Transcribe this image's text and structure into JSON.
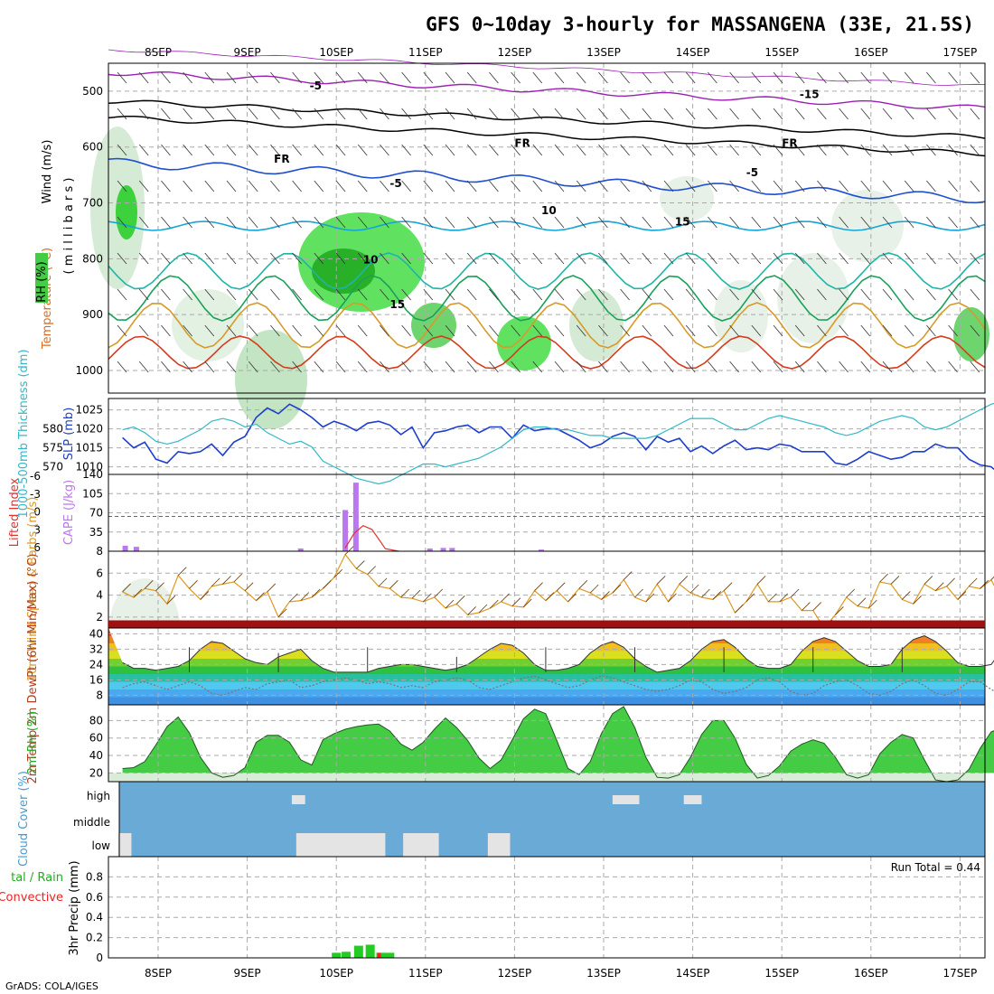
{
  "title": "GFS 0~10day 3-hourly for MASSANGENA (33E, 21.5S)",
  "footer": "GrADS: COLA/IGES",
  "colors": {
    "purple": "#9b1fb4",
    "black": "#000000",
    "blue": "#1f4fd0",
    "lightblue": "#16a3d6",
    "teal": "#1fb5a6",
    "green_line": "#1aa05a",
    "orange": "#d79a2a",
    "red": "#d43c1c",
    "rh_green": "#22dd22",
    "cloud_blue": "#6aaad6",
    "cloud_white": "#e4e4e4",
    "precip_green": "#22cc22",
    "precip_red": "#ee2222",
    "cape": "#bb77ee",
    "li": "#dd3333",
    "wind10": "#dd9922",
    "slp": "#1e3ecc",
    "thick": "#30b8c8"
  },
  "chart_data": [
    {
      "id": "upper_air",
      "type": "contour",
      "xaxis_dates": [
        "8SEP",
        "9SEP",
        "10SEP",
        "11SEP",
        "12SEP",
        "13SEP",
        "14SEP",
        "15SEP",
        "16SEP",
        "17SEP"
      ],
      "ylabels": [
        "Wind (m/s)",
        "Temperature (°C)",
        "RH (%)",
        "( m i l l i b a r s )"
      ],
      "yticks": [
        "500",
        "600",
        "700",
        "800",
        "900",
        "1000"
      ],
      "ylim": [
        450,
        1000
      ],
      "contour_labels": [
        {
          "text": "-5",
          "color": "purple",
          "x": 1.7,
          "p": 497
        },
        {
          "text": "-15",
          "color": "purple",
          "x": 7.2,
          "p": 512
        },
        {
          "text": "FR",
          "color": "black",
          "x": 1.3,
          "p": 628
        },
        {
          "text": "FR",
          "color": "black",
          "x": 4.0,
          "p": 600
        },
        {
          "text": "FR",
          "color": "black",
          "x": 7.0,
          "p": 600
        },
        {
          "text": "-5",
          "color": "blue",
          "x": 2.6,
          "p": 672
        },
        {
          "text": "-5",
          "color": "blue",
          "x": 6.6,
          "p": 652
        },
        {
          "text": "10",
          "color": "lightblue",
          "x": 4.3,
          "p": 720
        },
        {
          "text": "15",
          "color": "teal",
          "x": 5.8,
          "p": 740
        },
        {
          "text": "10",
          "color": "lightblue",
          "x": 2.3,
          "p": 808
        },
        {
          "text": "15",
          "color": "teal",
          "x": 2.6,
          "p": 888
        }
      ]
    },
    {
      "id": "slp_thickness",
      "type": "line",
      "ylabel_left": "1000-500mb Thickness (dm)",
      "ylabel_right": "SLP (mb)",
      "yticks_left": [
        "570",
        "575",
        "580"
      ],
      "yticks_right": [
        "1010",
        "1015",
        "1020",
        "1025"
      ],
      "ylim_slp": [
        1008,
        1028
      ],
      "slp": [
        1017.7,
        1015.0,
        1016.5,
        1012.0,
        1011.0,
        1014.0,
        1013.5,
        1014.0,
        1016.0,
        1013.0,
        1016.5,
        1018.0,
        1023.0,
        1025.5,
        1024.0,
        1026.5,
        1025.0,
        1023.0,
        1020.5,
        1022.0,
        1021.0,
        1019.5,
        1021.5,
        1022.0,
        1021.0,
        1018.5,
        1020.5,
        1015.0,
        1019.0,
        1019.5,
        1020.5,
        1021.0,
        1019.0,
        1020.5,
        1020.5,
        1017.5,
        1021.0,
        1019.5,
        1020.0,
        1020.0,
        1018.5,
        1017.0,
        1015.0,
        1016.0,
        1018.0,
        1019.0,
        1018.0,
        1014.5,
        1018.0,
        1016.5,
        1017.5,
        1014.0,
        1015.5,
        1013.5,
        1015.5,
        1017.0,
        1014.5,
        1015.0,
        1014.5,
        1016.0,
        1015.5,
        1014.0,
        1014.0,
        1014.0,
        1011.0,
        1010.5,
        1012.0,
        1014.0,
        1013.0,
        1012.0,
        1012.5,
        1014.0,
        1014.0,
        1016.0,
        1015.0,
        1015.0,
        1012.0,
        1010.5,
        1010.0,
        1007.5,
        1008.0,
        1011.0,
        1013.0,
        1015.0,
        1016.0,
        1017.5,
        1019.5
      ],
      "thickness": [
        576.5,
        577.0,
        576.0,
        574.5,
        574.0,
        574.5,
        575.5,
        576.5,
        578.0,
        578.5,
        578.0,
        577.0,
        577.5,
        576.0,
        575.0,
        574.0,
        574.5,
        573.5,
        571.0,
        570.0,
        569.0,
        568.0,
        567.5,
        567.0,
        567.5,
        568.5,
        569.5,
        570.5,
        570.5,
        570.0,
        570.5,
        571.0,
        571.5,
        572.5,
        573.5,
        575.0,
        576.5,
        577.0,
        577.0,
        576.5,
        576.5,
        576.0,
        575.5,
        575.5,
        575.0,
        575.0,
        575.0,
        575.0,
        575.5,
        576.5,
        577.5,
        578.5,
        578.5,
        578.5,
        577.5,
        576.5,
        576.5,
        577.5,
        578.5,
        579.0,
        578.5,
        578.0,
        577.5,
        577.0,
        576.0,
        575.5,
        576.0,
        577.0,
        578.0,
        578.5,
        579.0,
        578.5,
        577.0,
        576.5,
        577.0,
        578.0,
        579.0,
        580.0,
        581.0,
        581.5,
        580.5,
        578.0,
        577.0,
        576.5,
        576.5,
        576.5,
        577.0
      ]
    },
    {
      "id": "cape_li",
      "type": "bar+line",
      "ylabel_left": "Lifted Index",
      "ylabel_right": "CAPE (J/kg)",
      "yticks_left": [
        "-6",
        "-3",
        "0",
        "3",
        "6"
      ],
      "yticks_right": [
        "35",
        "70",
        "105",
        "140"
      ],
      "ylim_cape": [
        0,
        140
      ],
      "cape": [
        10,
        8,
        0,
        0,
        0,
        0,
        0,
        0,
        0,
        0,
        0,
        0,
        0,
        0,
        0,
        0,
        0,
        0,
        0,
        0,
        0,
        0,
        0,
        0,
        0,
        0,
        0,
        0,
        0,
        0,
        0,
        0,
        0,
        0,
        0,
        0,
        0,
        0,
        0,
        0,
        0,
        0,
        0,
        0,
        0,
        0,
        0,
        0,
        0,
        0,
        0,
        0,
        0,
        0,
        0,
        0,
        0,
        0,
        0,
        0,
        0,
        0,
        0,
        0,
        0,
        0,
        0,
        0,
        0,
        0,
        0,
        0,
        0,
        0,
        0,
        0,
        0,
        0,
        0,
        0,
        0,
        0,
        0,
        0,
        0,
        0,
        0
      ],
      "cape_spikes": [
        {
          "day": 1.6,
          "v": 5
        },
        {
          "day": 2.1,
          "v": 75
        },
        {
          "day": 2.22,
          "v": 125
        },
        {
          "day": 3.05,
          "v": 5
        },
        {
          "day": 3.2,
          "v": 6
        },
        {
          "day": 3.3,
          "v": 6
        },
        {
          "day": 4.3,
          "v": 3
        }
      ],
      "li_days": [
        2.1,
        2.2,
        2.3,
        2.4,
        2.55,
        2.7
      ],
      "li_values": [
        5.5,
        3.2,
        2.0,
        2.6,
        5.6,
        6.0
      ],
      "li_zero_line": 0
    },
    {
      "id": "wind10m",
      "type": "line",
      "ylabel": "10m Wind Speed & Barbs (m/s)",
      "yticks": [
        "2",
        "4",
        "6",
        "8"
      ],
      "ylim": [
        1,
        8
      ],
      "speed": [
        4.3,
        3.8,
        4.6,
        4.4,
        3.2,
        5.8,
        4.6,
        3.6,
        4.8,
        5.0,
        5.2,
        4.4,
        3.5,
        4.3,
        2.0,
        3.4,
        3.5,
        3.8,
        4.6,
        5.6,
        7.7,
        6.4,
        5.9,
        4.8,
        4.6,
        3.8,
        3.7,
        3.4,
        3.8,
        2.8,
        3.2,
        2.2,
        2.4,
        2.8,
        3.4,
        3.0,
        2.9,
        4.4,
        3.5,
        4.4,
        3.4,
        4.6,
        4.2,
        3.6,
        4.2,
        5.4,
        3.8,
        3.4,
        5.0,
        3.4,
        5.0,
        4.2,
        3.8,
        3.6,
        4.4,
        2.4,
        3.4,
        5.0,
        3.4,
        3.4,
        3.8,
        2.6,
        2.6,
        1.0,
        2.2,
        3.8,
        3.0,
        2.8,
        5.2,
        5.0,
        3.6,
        3.2,
        5.0,
        4.4,
        4.8,
        3.6,
        4.8,
        4.6,
        5.4,
        3.4,
        3.2,
        5.6,
        4.6,
        4.0,
        2.6,
        3.6,
        3.6
      ]
    },
    {
      "id": "temp2m",
      "type": "area",
      "ylabel": "2m Temp 2m DewPt (6hr Min/Max) (°C)",
      "yticks": [
        "8",
        "16",
        "24",
        "32",
        "40"
      ],
      "ylim": [
        3,
        43
      ],
      "temp": [
        25,
        22,
        22,
        21,
        22,
        23,
        26,
        32,
        36,
        35,
        31,
        27,
        25,
        24,
        28,
        30,
        32,
        26,
        22,
        20,
        20,
        20,
        20,
        22,
        23,
        24,
        24,
        23,
        22,
        21,
        22,
        24,
        28,
        32,
        35,
        34,
        30,
        24,
        21,
        21,
        22,
        24,
        30,
        34,
        36,
        33,
        27,
        23,
        20,
        21,
        22,
        26,
        32,
        36,
        37,
        33,
        27,
        23,
        22,
        22,
        24,
        31,
        36,
        38,
        36,
        31,
        26,
        23,
        23,
        24,
        32,
        37,
        39,
        36,
        31,
        25,
        23,
        23,
        24,
        32,
        37,
        40,
        37,
        30,
        24,
        22,
        24
      ],
      "dewpt": [
        12,
        14,
        15,
        13,
        11,
        13,
        15,
        13,
        9,
        8,
        10,
        12,
        11,
        14,
        15,
        16,
        12,
        13,
        15,
        16,
        17,
        16,
        14,
        15,
        14,
        12,
        13,
        12,
        15,
        16,
        17,
        16,
        12,
        11,
        13,
        15,
        17,
        18,
        16,
        14,
        12,
        13,
        16,
        18,
        17,
        15,
        13,
        11,
        10,
        11,
        13,
        16,
        15,
        11,
        9,
        10,
        12,
        16,
        17,
        15,
        10,
        8,
        9,
        13,
        15,
        16,
        13,
        9,
        8,
        10,
        14,
        16,
        13,
        9,
        8,
        11,
        15,
        15,
        11,
        8,
        10,
        15,
        15,
        12,
        10,
        14,
        17
      ],
      "whisker_days": [
        0.35,
        1.35,
        2.35,
        3.35,
        4.35,
        5.35,
        6.35,
        7.35,
        8.35
      ],
      "whisker_max": [
        33,
        30,
        33,
        28,
        33,
        33,
        33,
        33,
        33
      ]
    },
    {
      "id": "rh2m",
      "type": "area",
      "ylabel": "2m RH (%)",
      "yticks": [
        "20",
        "40",
        "60",
        "80"
      ],
      "ylim": [
        10,
        98
      ],
      "rh": [
        25,
        26,
        33,
        52,
        73,
        84,
        66,
        38,
        20,
        15,
        17,
        26,
        55,
        63,
        63,
        55,
        35,
        29,
        58,
        65,
        70,
        73,
        75,
        76,
        68,
        53,
        46,
        55,
        70,
        83,
        72,
        57,
        37,
        25,
        35,
        58,
        82,
        93,
        88,
        57,
        25,
        18,
        33,
        65,
        88,
        96,
        72,
        38,
        15,
        14,
        18,
        38,
        64,
        80,
        80,
        60,
        30,
        14,
        17,
        28,
        45,
        53,
        58,
        54,
        38,
        18,
        14,
        18,
        42,
        55,
        64,
        60,
        35,
        12,
        10,
        12,
        24,
        48,
        67,
        72,
        63
      ]
    },
    {
      "id": "cloud",
      "type": "bar",
      "ylabel": "Cloud Cover (%)",
      "yticks": [
        "low",
        "middle",
        "high"
      ],
      "low_blocks": [
        [
          0,
          0.15
        ],
        [
          2.0,
          3.0
        ],
        [
          3.2,
          3.6
        ],
        [
          4.15,
          4.4
        ]
      ],
      "high_blocks": [
        [
          5.1,
          5.4
        ],
        [
          1.5,
          1.65
        ],
        [
          5.9,
          6.1
        ]
      ]
    },
    {
      "id": "precip",
      "type": "bar",
      "ylabel": "3hr Precip (mm)",
      "legend_left": [
        "tal / Rain",
        "Convective"
      ],
      "run_total": "Run Total = 0.44",
      "yticks": [
        "0",
        "0.2",
        "0.4",
        "0.6",
        "0.8"
      ],
      "ylim": [
        0,
        1.0
      ],
      "bars": [
        {
          "day": 2.0,
          "v": 0.05
        },
        {
          "day": 2.11,
          "v": 0.06
        },
        {
          "day": 2.25,
          "v": 0.12
        },
        {
          "day": 2.38,
          "v": 0.13
        },
        {
          "day": 2.5,
          "v": 0.05
        },
        {
          "day": 2.6,
          "v": 0.05
        }
      ],
      "conv": [
        {
          "day": 2.48,
          "v": 0.05
        }
      ]
    }
  ]
}
